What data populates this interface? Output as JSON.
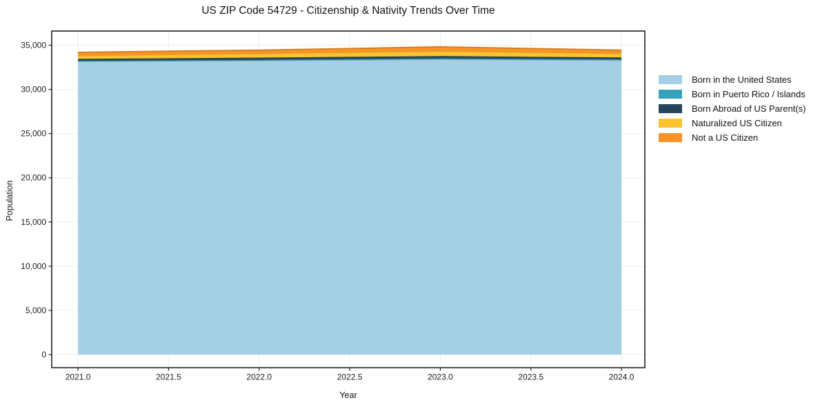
{
  "title": "US ZIP Code 54729 - Citizenship & Nativity Trends Over Time",
  "chart_data": {
    "type": "area",
    "stacked": true,
    "title": "US ZIP Code 54729 - Citizenship & Nativity Trends Over Time",
    "xlabel": "Year",
    "ylabel": "Population",
    "x": [
      2021,
      2022,
      2023,
      2024
    ],
    "series": [
      {
        "name": "Born in the United States",
        "color": "#a5cfe4",
        "values": [
          33150,
          33250,
          33400,
          33300
        ]
      },
      {
        "name": "Born in Puerto Rico / Islands",
        "color": "#36a1ba",
        "values": [
          100,
          100,
          120,
          100
        ]
      },
      {
        "name": "Born Abroad of US Parent(s)",
        "color": "#24465a",
        "values": [
          200,
          250,
          250,
          220
        ]
      },
      {
        "name": "Naturalized US Citizen",
        "color": "#fcc32e",
        "values": [
          380,
          450,
          560,
          440
        ]
      },
      {
        "name": "Not a US Citizen",
        "color": "#f79327",
        "values": [
          370,
          400,
          480,
          390
        ]
      }
    ],
    "totals": [
      34200,
      34450,
      34810,
      34450
    ],
    "xlim": [
      2020.855,
      2024.129
    ],
    "ylim": [
      -1483,
      36601
    ],
    "xticks": [
      2021.0,
      2021.5,
      2022.0,
      2022.5,
      2023.0,
      2023.5,
      2024.0
    ],
    "xtick_labels": [
      "2021.0",
      "2021.5",
      "2022.0",
      "2022.5",
      "2023.0",
      "2023.5",
      "2024.0"
    ],
    "yticks": [
      0,
      5000,
      10000,
      15000,
      20000,
      25000,
      30000,
      35000
    ],
    "ytick_labels": [
      "0",
      "5,000",
      "10,000",
      "15,000",
      "20,000",
      "25,000",
      "30,000",
      "35,000"
    ],
    "grid": true,
    "grid_color": "#ededed",
    "spine_color": "#1f1f1f",
    "text_color": "#1a1a1a",
    "background": "#ffffff",
    "legend_position": "right"
  }
}
